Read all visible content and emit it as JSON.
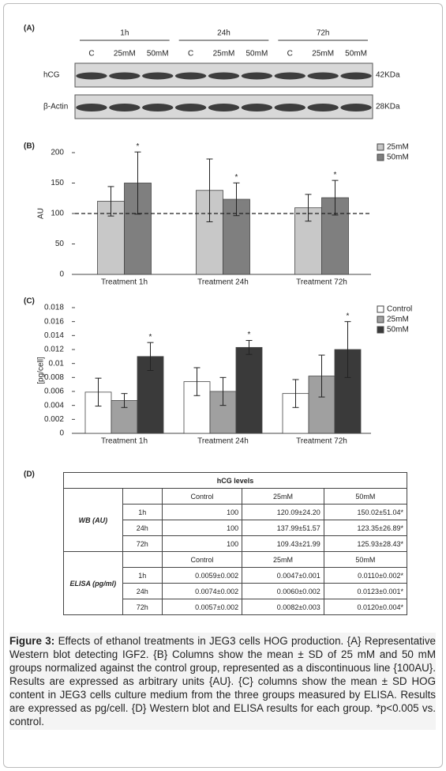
{
  "panel_a": {
    "label": "(A)",
    "groups": [
      {
        "label": "1h",
        "lanes": [
          "C",
          "25mM",
          "50mM"
        ]
      },
      {
        "label": "24h",
        "lanes": [
          "C",
          "25mM",
          "50mM"
        ]
      },
      {
        "label": "72h",
        "lanes": [
          "C",
          "25mM",
          "50mM"
        ]
      }
    ],
    "blots": [
      {
        "name": "hCG",
        "size": "42KDa"
      },
      {
        "name": "β-Actin",
        "size": "28KDa"
      }
    ]
  },
  "chart_data": [
    {
      "type": "bar",
      "panel": "(B)",
      "ylabel": "AU",
      "categories": [
        "Treatment 1h",
        "Treatment 24h",
        "Treatment 72h"
      ],
      "series": [
        {
          "name": "25mM",
          "color": "#c8c8c8",
          "values": [
            120.09,
            137.99,
            109.43
          ],
          "errors": [
            24.2,
            51.57,
            21.99
          ]
        },
        {
          "name": "50mM",
          "color": "#7f7f7f",
          "values": [
            150.02,
            123.35,
            125.93
          ],
          "errors": [
            51.04,
            26.89,
            28.43
          ],
          "significance": [
            "*",
            "*",
            "*"
          ]
        }
      ],
      "reference_line": 100,
      "reference_style": "dashed",
      "ylim": [
        0,
        200
      ],
      "yticks": [
        0,
        50,
        100,
        150,
        200
      ],
      "legend": "top-right"
    },
    {
      "type": "bar",
      "panel": "(C)",
      "ylabel": "[pg/cell]",
      "categories": [
        "Treatment 1h",
        "Treatment 24h",
        "Treatment 72h"
      ],
      "series": [
        {
          "name": "Control",
          "color": "#ffffff",
          "values": [
            0.0059,
            0.0074,
            0.0057
          ],
          "errors": [
            0.002,
            0.002,
            0.002
          ]
        },
        {
          "name": "25mM",
          "color": "#a0a0a0",
          "values": [
            0.0047,
            0.006,
            0.0082
          ],
          "errors": [
            0.001,
            0.002,
            0.003
          ]
        },
        {
          "name": "50mM",
          "color": "#3a3a3a",
          "values": [
            0.011,
            0.0123,
            0.012
          ],
          "errors": [
            0.002,
            0.001,
            0.004
          ],
          "significance": [
            "*",
            "*",
            "*"
          ]
        }
      ],
      "ylim": [
        0,
        0.018
      ],
      "yticks": [
        0,
        0.002,
        0.004,
        0.006,
        0.008,
        0.01,
        0.012,
        0.014,
        0.016,
        0.018
      ],
      "legend": "top-right"
    }
  ],
  "table": {
    "panel": "(D)",
    "title": "hCG levels",
    "groups": [
      {
        "label": "WB (AU)",
        "columns": [
          "Control",
          "25mM",
          "50mM"
        ],
        "rows": [
          [
            "1h",
            "100",
            "120.09±24.20",
            "150.02±51.04*"
          ],
          [
            "24h",
            "100",
            "137.99±51.57",
            "123.35±26.89*"
          ],
          [
            "72h",
            "100",
            "109.43±21.99",
            "125.93±28.43*"
          ]
        ]
      },
      {
        "label": "ELISA (pg/ml)",
        "columns": [
          "Control",
          "25mM",
          "50mM"
        ],
        "rows": [
          [
            "1h",
            "0.0059±0.002",
            "0.0047±0.001",
            "0.0110±0.002*"
          ],
          [
            "24h",
            "0.0074±0.002",
            "0.0060±0.002",
            "0.0123±0.001*"
          ],
          [
            "72h",
            "0.0057±0.002",
            "0.0082±0.003",
            "0.0120±0.004*"
          ]
        ]
      }
    ]
  },
  "caption": {
    "label": "Figure 3:",
    "text": "Effects of ethanol treatments in JEG3 cells HOG production. {A} Representative Western blot detecting IGF2. {B} Columns show the mean ± SD of 25 mM and 50 mM groups normalized against the control group, represented as a discontinuous line {100AU}. Results are expressed as arbitrary units {AU}. {C} columns show the mean ± SD HOG content in JEG3 cells culture medium from the three groups measured by ELISA. Results are expressed as pg/cell. {D} Western blot and ELISA results for each group. *p<0.005 vs. control."
  }
}
